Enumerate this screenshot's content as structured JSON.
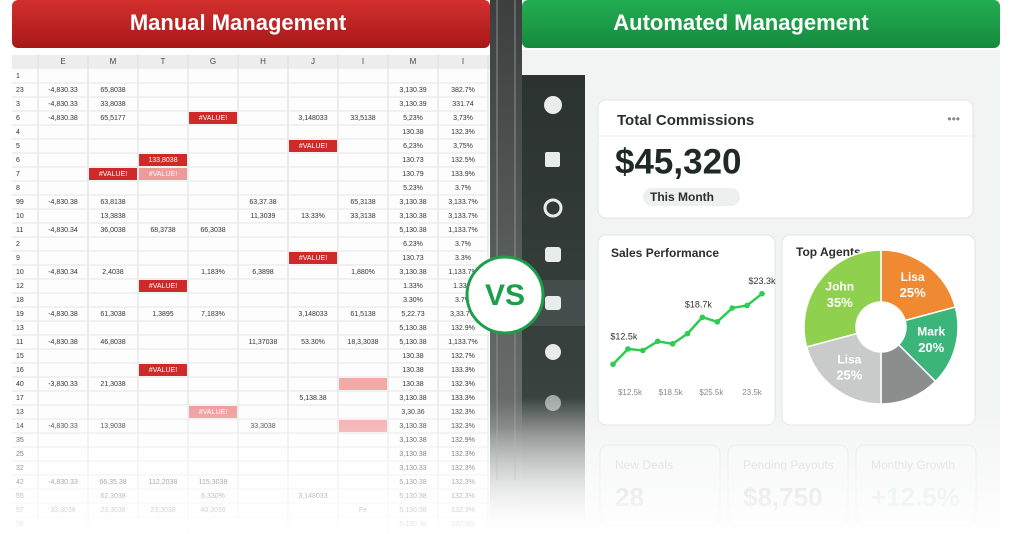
{
  "left": {
    "title": "Manual Management",
    "columns": [
      "E",
      "M",
      "T",
      "G",
      "H",
      "J",
      "I",
      "M",
      "I"
    ],
    "rows": [
      {
        "label": "1",
        "cells": [
          null,
          null,
          null,
          null,
          null,
          null,
          null,
          null,
          null
        ]
      },
      {
        "label": "23",
        "cells": [
          "-4,830.33",
          "65,8038",
          null,
          null,
          null,
          null,
          null,
          "3,130.39",
          "382.7%"
        ]
      },
      {
        "label": "3",
        "cells": [
          "-4,830.33",
          "33,8038",
          null,
          null,
          null,
          null,
          null,
          "3,130.39",
          "331.74"
        ]
      },
      {
        "label": "6",
        "cells": [
          "-4,830.38",
          "65,5177",
          null,
          {
            "text": "#VALUE!",
            "style": "error"
          },
          null,
          "3,148033",
          "33,5138",
          "5,23%",
          "3,73%"
        ]
      },
      {
        "label": "4",
        "cells": [
          null,
          null,
          null,
          null,
          null,
          null,
          null,
          "130.38",
          "132.3%"
        ]
      },
      {
        "label": "5",
        "cells": [
          null,
          null,
          null,
          null,
          null,
          {
            "text": "#VALUE!",
            "style": "error"
          },
          null,
          "6,23%",
          "3,75%"
        ]
      },
      {
        "label": "6",
        "cells": [
          null,
          null,
          {
            "text": "133,8038",
            "style": "error"
          },
          null,
          null,
          null,
          null,
          "130.73",
          "132.5%"
        ]
      },
      {
        "label": "7",
        "cells": [
          null,
          {
            "text": "#VALUE!",
            "style": "error"
          },
          {
            "text": "#VALUE!",
            "style": "faint"
          },
          null,
          null,
          null,
          null,
          "130.79",
          "133.9%"
        ]
      },
      {
        "label": "8",
        "cells": [
          null,
          null,
          null,
          null,
          null,
          null,
          null,
          "5.23%",
          "3.7%"
        ]
      },
      {
        "label": "99",
        "cells": [
          "-4,830.38",
          "63,8138",
          null,
          null,
          "63,37.38",
          null,
          "65,3138",
          "3,130.38",
          "3,133.7%"
        ]
      },
      {
        "label": "10",
        "cells": [
          null,
          "13,3838",
          null,
          null,
          "11,3039",
          "13.33%",
          "33,3138",
          "3,130.38",
          "3,133.7%"
        ]
      },
      {
        "label": "11",
        "cells": [
          "-4,830.34",
          "36,0038",
          "68,3738",
          "66,3038",
          null,
          null,
          null,
          "5,130.38",
          "1,133.7%"
        ]
      },
      {
        "label": "2",
        "cells": [
          null,
          null,
          null,
          null,
          null,
          null,
          null,
          "6.23%",
          "3.7%"
        ]
      },
      {
        "label": "9",
        "cells": [
          null,
          null,
          null,
          null,
          null,
          {
            "text": "#VALUE!",
            "style": "error"
          },
          null,
          "130.73",
          "3.3%"
        ]
      },
      {
        "label": "10",
        "cells": [
          "-4,830.34",
          "2,4038",
          null,
          "1,183%",
          "6,3898",
          null,
          "1,880%",
          "3,130.38",
          "1,133.7%"
        ]
      },
      {
        "label": "12",
        "cells": [
          null,
          null,
          {
            "text": "#VALUE!",
            "style": "error"
          },
          null,
          null,
          null,
          null,
          "1.33%",
          "1.33%"
        ]
      },
      {
        "label": "18",
        "cells": [
          null,
          null,
          null,
          null,
          null,
          null,
          null,
          "3.30%",
          "3.7%"
        ]
      },
      {
        "label": "19",
        "cells": [
          "-4,830.38",
          "61,3038",
          "1,3895",
          "7,183%",
          null,
          "3,148033",
          "61,5138",
          "5,22.73",
          "3,33.7%"
        ]
      },
      {
        "label": "13",
        "cells": [
          null,
          null,
          null,
          null,
          null,
          null,
          null,
          "5,130.38",
          "132.9%"
        ]
      },
      {
        "label": "11",
        "cells": [
          "-4,830.38",
          "46,8038",
          null,
          null,
          "11,37038",
          "53.30%",
          "18,3,3038",
          "5,130.38",
          "1,133.7%"
        ]
      },
      {
        "label": "15",
        "cells": [
          null,
          null,
          null,
          null,
          null,
          null,
          null,
          "130.38",
          "132.7%"
        ]
      },
      {
        "label": "16",
        "cells": [
          null,
          null,
          {
            "text": "#VALUE!",
            "style": "error"
          },
          null,
          null,
          null,
          null,
          "130.38",
          "133.3%"
        ]
      },
      {
        "label": "40",
        "cells": [
          "-3,830.33",
          "21,3038",
          null,
          null,
          null,
          null,
          {
            "style": "highlight"
          },
          "130.38",
          "132.3%"
        ]
      },
      {
        "label": "17",
        "cells": [
          null,
          null,
          null,
          null,
          null,
          "5,138.38",
          null,
          "3,130.38",
          "133.3%"
        ]
      },
      {
        "label": "13",
        "cells": [
          null,
          null,
          null,
          {
            "text": "#VALUE!",
            "style": "faint"
          },
          null,
          null,
          null,
          "3,30.36",
          "132.3%"
        ]
      },
      {
        "label": "14",
        "cells": [
          "-4,830.33",
          "13,9038",
          null,
          null,
          "33,3038",
          null,
          {
            "style": "highlight"
          },
          "3,130.38",
          "132.3%"
        ]
      },
      {
        "label": "35",
        "cells": [
          null,
          null,
          null,
          null,
          null,
          null,
          null,
          "3,130.38",
          "132.9%"
        ]
      },
      {
        "label": "25",
        "cells": [
          null,
          null,
          null,
          null,
          null,
          null,
          null,
          "3,130.38",
          "132.3%"
        ]
      },
      {
        "label": "32",
        "cells": [
          null,
          null,
          null,
          null,
          null,
          null,
          null,
          "3,130.33",
          "132.3%"
        ]
      },
      {
        "label": "42",
        "cells": [
          "-4,830.33",
          "66,35.38",
          "112,2038",
          "115,3038",
          null,
          null,
          null,
          "5,130.38",
          "132.3%"
        ]
      },
      {
        "label": "55",
        "cells": [
          null,
          "62,3038",
          null,
          "6,330%",
          null,
          "3,148033",
          null,
          "5,130.38",
          "132.3%"
        ]
      },
      {
        "label": "57",
        "cells": [
          "33,3038",
          "23,3038",
          "23,3038",
          "40,3038",
          null,
          null,
          "Fe",
          "5,130.38",
          "132.3%"
        ]
      },
      {
        "label": "58",
        "cells": [
          null,
          null,
          null,
          null,
          null,
          null,
          null,
          "5,130.38",
          "132.3%"
        ]
      }
    ]
  },
  "badge": "VS",
  "right": {
    "title": "Automated Management",
    "commissions": {
      "title": "Total Commissions",
      "menu": "•••",
      "amount": "$45,320",
      "period": "This Month"
    },
    "kpis": [
      {
        "label": "New Deals",
        "value": "28"
      },
      {
        "label": "Pending Payouts",
        "value": "$8,750"
      },
      {
        "label": "Monthly Growth",
        "value": "+12.5%"
      }
    ]
  },
  "chart_data": [
    {
      "type": "line",
      "title": "Sales Performance",
      "values": [
        9.5,
        12.5,
        12.2,
        14.0,
        13.5,
        15.5,
        18.7,
        17.8,
        20.5,
        21.0,
        23.3
      ],
      "value_labels": [
        null,
        "$12.5k",
        null,
        null,
        null,
        null,
        "$18.7k",
        null,
        null,
        null,
        "$23.3k"
      ],
      "xtick_labels": [
        "$12.5k",
        "$18.5k",
        "$25.5k",
        "23.5k"
      ],
      "ylim": [
        8,
        25
      ],
      "color": "#2ecc52"
    },
    {
      "type": "pie",
      "title": "Top Agents",
      "categories": [
        "Lisa",
        "Mark",
        null,
        "Lisa",
        "John"
      ],
      "values": [
        25,
        20,
        15,
        25,
        35
      ],
      "value_labels": [
        "25%",
        "20%",
        null,
        "25%",
        "35%"
      ],
      "colors": [
        "#f08a32",
        "#3bb57a",
        "#8a8f8e",
        "#c9cbca",
        "#8fd14f"
      ]
    }
  ]
}
